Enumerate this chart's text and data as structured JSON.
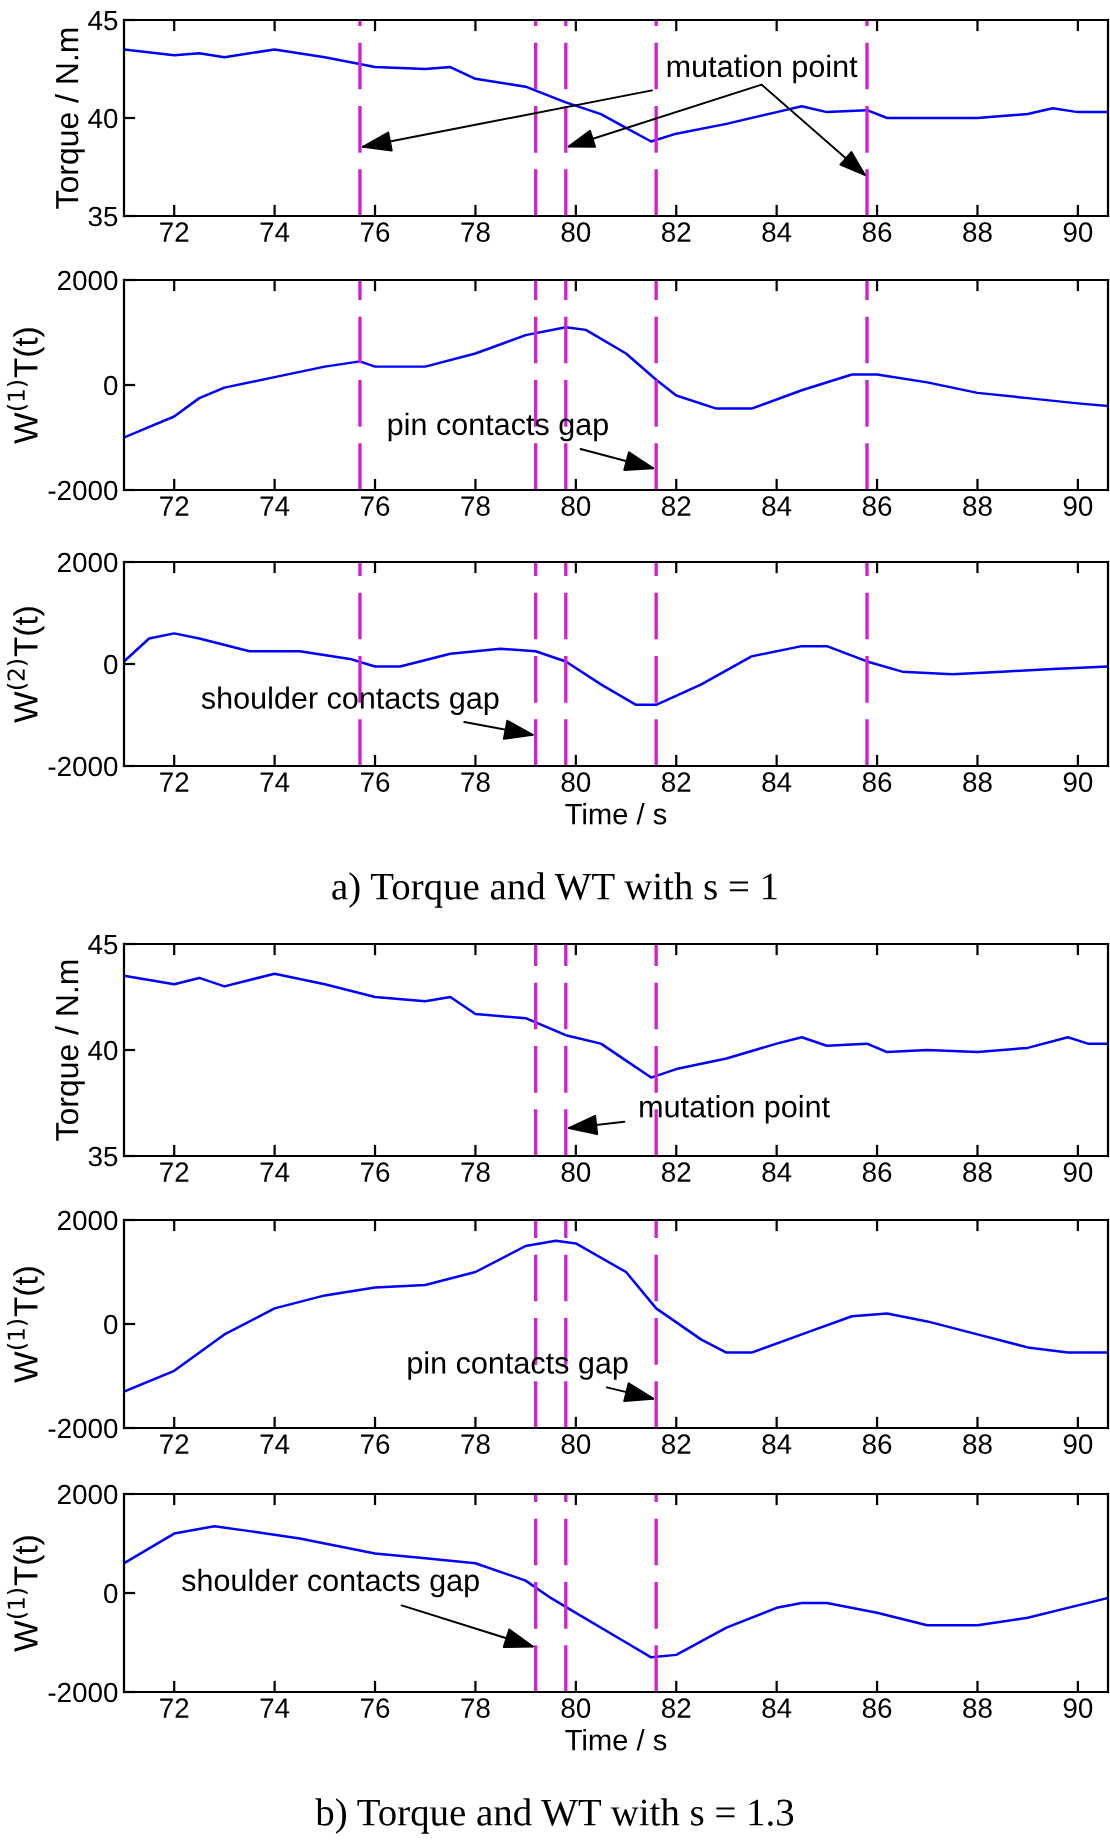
{
  "chart_data": [
    {
      "type": "line",
      "ylabel": "Torque / N.m",
      "xlim": [
        71,
        90.6
      ],
      "xticks": [
        72,
        74,
        76,
        78,
        80,
        82,
        84,
        86,
        88,
        90
      ],
      "ylim": [
        35,
        45
      ],
      "yticks": [
        35,
        40,
        45
      ],
      "grid": false,
      "legend": false,
      "series": [
        {
          "color": "#0000ff",
          "x": [
            71,
            72,
            72.5,
            73,
            74,
            75,
            76,
            77,
            77.5,
            78,
            79,
            79.8,
            80.5,
            81,
            81.5,
            82,
            83,
            84,
            84.5,
            85,
            85.8,
            86.2,
            87,
            88,
            89,
            89.5,
            90,
            90.6
          ],
          "values": [
            43.5,
            43.2,
            43.3,
            43.1,
            43.5,
            43.1,
            42.6,
            42.5,
            42.6,
            42.0,
            41.6,
            40.8,
            40.2,
            39.5,
            38.8,
            39.2,
            39.7,
            40.3,
            40.6,
            40.3,
            40.4,
            40.0,
            40.0,
            40.0,
            40.2,
            40.5,
            40.3,
            40.3
          ]
        }
      ],
      "ref_lines": [
        {
          "axis": "x",
          "value": 75.7,
          "color": "#d020d0",
          "line_style": "dashed"
        },
        {
          "axis": "x",
          "value": 79.2,
          "color": "#d020d0",
          "line_style": "dashed"
        },
        {
          "axis": "x",
          "value": 79.8,
          "color": "#d020d0",
          "line_style": "dashed"
        },
        {
          "axis": "x",
          "value": 81.6,
          "color": "#d020d0",
          "line_style": "dashed"
        },
        {
          "axis": "x",
          "value": 85.8,
          "color": "#d020d0",
          "line_style": "dashed"
        }
      ],
      "annotations": [
        {
          "text": "mutation point",
          "x": 75.7,
          "y": 38.5
        }
      ]
    },
    {
      "type": "line",
      "ylabel": "W$^{(1)}$T(t)",
      "xlim": [
        71,
        90.6
      ],
      "xticks": [
        72,
        74,
        76,
        78,
        80,
        82,
        84,
        86,
        88,
        90
      ],
      "ylim": [
        -2000,
        2000
      ],
      "yticks": [
        -2000,
        0,
        2000
      ],
      "grid": false,
      "legend": false,
      "series": [
        {
          "color": "#0000ff",
          "x": [
            71,
            72,
            72.5,
            73,
            74,
            75,
            75.7,
            76,
            77,
            78,
            79,
            79.8,
            80.2,
            81,
            81.6,
            82,
            82.8,
            83.5,
            84.5,
            85.5,
            86,
            87,
            88,
            89,
            90,
            90.6
          ],
          "values": [
            -1000,
            -600,
            -250,
            -50,
            150,
            350,
            450,
            350,
            350,
            600,
            950,
            1100,
            1050,
            600,
            100,
            -200,
            -450,
            -450,
            -100,
            200,
            200,
            50,
            -150,
            -250,
            -350,
            -400
          ]
        }
      ],
      "ref_lines": [
        {
          "axis": "x",
          "value": 75.7,
          "color": "#d020d0",
          "line_style": "dashed"
        },
        {
          "axis": "x",
          "value": 79.2,
          "color": "#d020d0",
          "line_style": "dashed"
        },
        {
          "axis": "x",
          "value": 79.8,
          "color": "#d020d0",
          "line_style": "dashed"
        },
        {
          "axis": "x",
          "value": 81.6,
          "color": "#d020d0",
          "line_style": "dashed"
        },
        {
          "axis": "x",
          "value": 85.8,
          "color": "#d020d0",
          "line_style": "dashed"
        }
      ],
      "annotations": [
        {
          "text": "pin contacts gap",
          "x": 81.6,
          "y": -1600
        }
      ]
    },
    {
      "type": "line",
      "ylabel": "W$^{(2)}$T(t)",
      "xlabel": "Time / s",
      "xlim": [
        71,
        90.6
      ],
      "xticks": [
        72,
        74,
        76,
        78,
        80,
        82,
        84,
        86,
        88,
        90
      ],
      "ylim": [
        -2000,
        2000
      ],
      "yticks": [
        -2000,
        0,
        2000
      ],
      "grid": false,
      "legend": false,
      "series": [
        {
          "color": "#0000ff",
          "x": [
            71,
            71.5,
            72,
            72.5,
            73.5,
            74.5,
            75.5,
            76,
            76.5,
            77.5,
            78.5,
            79.2,
            79.8,
            80.5,
            81.2,
            81.6,
            82.5,
            83.5,
            84.5,
            85,
            85.8,
            86.5,
            87.5,
            88.5,
            89.5,
            90.6
          ],
          "values": [
            50,
            500,
            600,
            500,
            250,
            250,
            100,
            -50,
            -50,
            200,
            300,
            250,
            50,
            -400,
            -800,
            -800,
            -400,
            150,
            350,
            350,
            50,
            -150,
            -200,
            -150,
            -100,
            -50
          ]
        }
      ],
      "ref_lines": [
        {
          "axis": "x",
          "value": 75.7,
          "color": "#d020d0",
          "line_style": "dashed"
        },
        {
          "axis": "x",
          "value": 79.2,
          "color": "#d020d0",
          "line_style": "dashed"
        },
        {
          "axis": "x",
          "value": 79.8,
          "color": "#d020d0",
          "line_style": "dashed"
        },
        {
          "axis": "x",
          "value": 81.6,
          "color": "#d020d0",
          "line_style": "dashed"
        },
        {
          "axis": "x",
          "value": 85.8,
          "color": "#d020d0",
          "line_style": "dashed"
        }
      ],
      "annotations": [
        {
          "text": "shoulder contacts gap",
          "x": 79.2,
          "y": -1400
        },
        "a) Torque and WT with s = 1"
      ]
    },
    {
      "type": "line",
      "ylabel": "Torque / N.m",
      "xlim": [
        71,
        90.6
      ],
      "xticks": [
        72,
        74,
        76,
        78,
        80,
        82,
        84,
        86,
        88,
        90
      ],
      "ylim": [
        35,
        45
      ],
      "yticks": [
        35,
        40,
        45
      ],
      "grid": false,
      "legend": false,
      "series": [
        {
          "color": "#0000ff",
          "x": [
            71,
            72,
            72.5,
            73,
            74,
            75,
            76,
            77,
            77.5,
            78,
            79,
            79.8,
            80.5,
            81,
            81.5,
            82,
            83,
            84,
            84.5,
            85,
            85.8,
            86.2,
            87,
            88,
            89,
            89.8,
            90.2,
            90.6
          ],
          "values": [
            43.5,
            43.1,
            43.4,
            43.0,
            43.6,
            43.1,
            42.5,
            42.3,
            42.5,
            41.7,
            41.5,
            40.7,
            40.3,
            39.5,
            38.7,
            39.1,
            39.6,
            40.3,
            40.6,
            40.2,
            40.3,
            39.9,
            40.0,
            39.9,
            40.1,
            40.6,
            40.3,
            40.3
          ]
        }
      ],
      "ref_lines": [
        {
          "axis": "x",
          "value": 79.2,
          "color": "#d020d0",
          "line_style": "dashed"
        },
        {
          "axis": "x",
          "value": 79.8,
          "color": "#d020d0",
          "line_style": "dashed"
        },
        {
          "axis": "x",
          "value": 81.6,
          "color": "#d020d0",
          "line_style": "dashed"
        }
      ],
      "annotations": [
        {
          "text": "mutation point",
          "x": 79.8,
          "y": 36.3
        }
      ]
    },
    {
      "type": "line",
      "ylabel": "W$^{(1)}$T(t)",
      "xlim": [
        71,
        90.6
      ],
      "xticks": [
        72,
        74,
        76,
        78,
        80,
        82,
        84,
        86,
        88,
        90
      ],
      "ylim": [
        -2000,
        2000
      ],
      "yticks": [
        -2000,
        0,
        2000
      ],
      "grid": false,
      "legend": false,
      "series": [
        {
          "color": "#0000ff",
          "x": [
            71,
            72,
            73,
            74,
            75,
            76,
            77,
            78,
            79,
            79.6,
            80,
            81,
            81.6,
            82.5,
            83,
            83.5,
            84.5,
            85.5,
            86.2,
            87,
            88,
            89,
            89.8,
            90.6
          ],
          "values": [
            -1300,
            -900,
            -200,
            300,
            550,
            700,
            750,
            1000,
            1500,
            1600,
            1550,
            1000,
            300,
            -300,
            -550,
            -550,
            -200,
            150,
            200,
            50,
            -200,
            -450,
            -550,
            -550
          ]
        }
      ],
      "ref_lines": [
        {
          "axis": "x",
          "value": 79.2,
          "color": "#d020d0",
          "line_style": "dashed"
        },
        {
          "axis": "x",
          "value": 79.8,
          "color": "#d020d0",
          "line_style": "dashed"
        },
        {
          "axis": "x",
          "value": 81.6,
          "color": "#d020d0",
          "line_style": "dashed"
        }
      ],
      "annotations": [
        {
          "text": "pin contacts gap",
          "x": 81.6,
          "y": -1450
        }
      ]
    },
    {
      "type": "line",
      "ylabel": "W$^{(1)}$T(t)",
      "xlabel": "Time / s",
      "xlim": [
        71,
        90.6
      ],
      "xticks": [
        72,
        74,
        76,
        78,
        80,
        82,
        84,
        86,
        88,
        90
      ],
      "ylim": [
        -2000,
        2000
      ],
      "yticks": [
        -2000,
        0,
        2000
      ],
      "grid": false,
      "legend": false,
      "series": [
        {
          "color": "#0000ff",
          "x": [
            71,
            72,
            72.8,
            73.5,
            74.5,
            76,
            77,
            78,
            79,
            79.5,
            80,
            81,
            81.5,
            82,
            83,
            84,
            84.5,
            85,
            86,
            87,
            88,
            89,
            90,
            90.6
          ],
          "values": [
            600,
            1200,
            1350,
            1250,
            1100,
            800,
            700,
            600,
            250,
            -100,
            -400,
            -1000,
            -1300,
            -1250,
            -700,
            -300,
            -200,
            -200,
            -400,
            -650,
            -650,
            -500,
            -250,
            -100
          ]
        }
      ],
      "ref_lines": [
        {
          "axis": "x",
          "value": 79.2,
          "color": "#d020d0",
          "line_style": "dashed"
        },
        {
          "axis": "x",
          "value": 79.8,
          "color": "#d020d0",
          "line_style": "dashed"
        },
        {
          "axis": "x",
          "value": 81.6,
          "color": "#d020d0",
          "line_style": "dashed"
        }
      ],
      "annotations": [
        {
          "text": "shoulder contacts gap",
          "x": 79.2,
          "y": -1100
        },
        "b) Torque and WT with s = 1.3"
      ]
    }
  ]
}
